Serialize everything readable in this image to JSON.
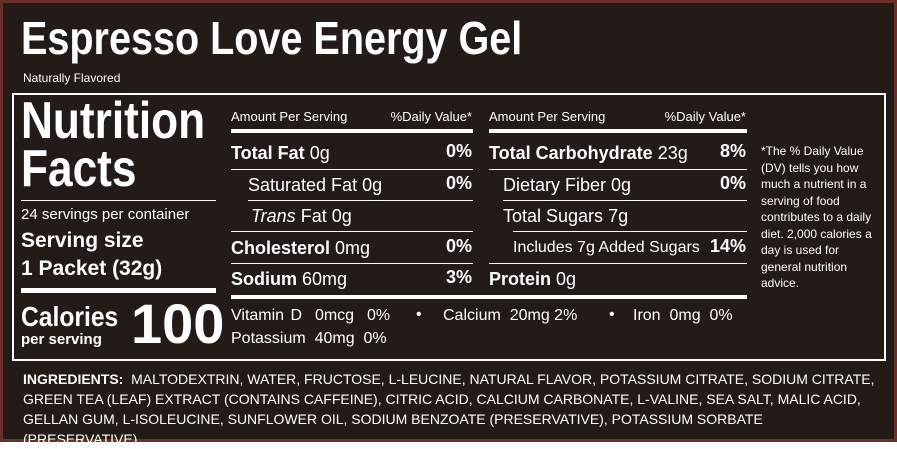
{
  "title": "Espresso Love Energy Gel",
  "subtitle": "Naturally Flavored",
  "facts": {
    "heading": [
      "Nutrition",
      "Facts"
    ],
    "servings_per_container": "24 servings per container",
    "serving_size_label": "Serving size",
    "serving_size": "1 Packet (32g)",
    "calories_label": "Calories",
    "calories_sub": "per serving",
    "calories": "100",
    "left": {
      "header_amount": "Amount Per Serving",
      "header_dv": "%Daily Value*",
      "rows": [
        {
          "name": "Total Fat",
          "amount": "0g",
          "dv": "0%"
        },
        {
          "name": "Saturated Fat",
          "amount": "0g",
          "dv": "0%"
        },
        {
          "name_italic": "Trans",
          "name": "Fat",
          "amount": "0g"
        },
        {
          "name": "Cholesterol",
          "amount": "0mg",
          "dv": "0%"
        },
        {
          "name": "Sodium",
          "amount": "60mg",
          "dv": "3%"
        }
      ]
    },
    "right": {
      "header_amount": "Amount Per Serving",
      "header_dv": "%Daily Value*",
      "rows": [
        {
          "name": "Total Carbohydrate",
          "amount": "23g",
          "dv": "8%"
        },
        {
          "name": "Dietary Fiber",
          "amount": "0g",
          "dv": "0%"
        },
        {
          "name": "Total Sugars",
          "amount": "7g"
        },
        {
          "name": "Includes 7g Added Sugars",
          "dv": "14%"
        },
        {
          "name": "Protein",
          "amount": "0g"
        }
      ]
    },
    "micronutrients": [
      {
        "name": "Vitamin D",
        "amount": "0mcg",
        "dv": "0%"
      },
      {
        "name": "Calcium",
        "amount": "20mg",
        "dv": "2%"
      },
      {
        "name": "Iron",
        "amount": "0mg",
        "dv": "0%"
      },
      {
        "name": "Potassium",
        "amount": "40mg",
        "dv": "0%"
      }
    ],
    "footnote": "*The % Daily Value (DV) tells you how much a nutrient in a serving of food contributes to a daily diet. 2,000 calories a day is used for general nutrition advice."
  },
  "ingredients": {
    "label": "INGREDIENTS:",
    "text": "MALTODEXTRIN, WATER, FRUCTOSE, L-LEUCINE, NATURAL FLAVOR, POTASSIUM CITRATE, SODIUM CITRATE, GREEN TEA (LEAF) EXTRACT (CONTAINS CAFFEINE), CITRIC ACID, CALCIUM CARBONATE, L-VALINE, SEA SALT, MALIC ACID, GELLAN GUM, L-ISOLEUCINE, SUNFLOWER OIL, SODIUM BENZOATE (PRESERVATIVE), POTASSIUM SORBATE (PRESERVATIVE)."
  }
}
